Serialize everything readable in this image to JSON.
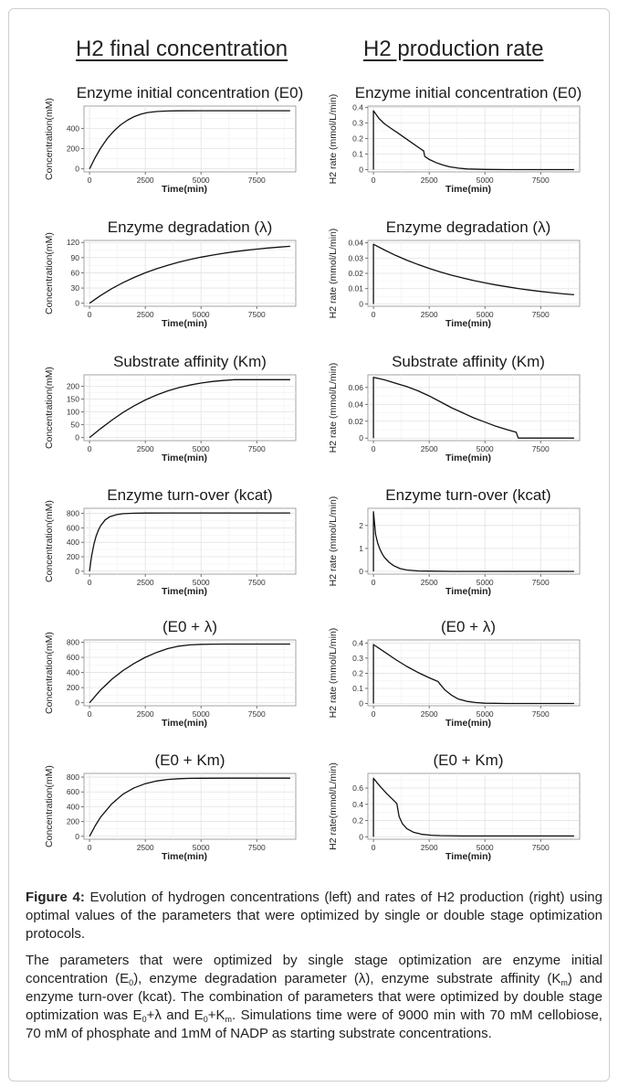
{
  "column_titles": {
    "left": "H2 final concentration",
    "right": "H2 production rate"
  },
  "caption": {
    "figure_label": "Figure 4:",
    "figure_text": " Evolution of hydrogen concentrations (left) and rates of H2 production (right) using optimal values of the parameters that were optimized by single or double stage optimization protocols.",
    "para2": {
      "t1": "The parameters that were optimized by single stage optimization are enzyme initial concentration (E",
      "s1": "0",
      "t2": "), enzyme degradation parameter (λ), enzyme substrate affinity (K",
      "s2": "m",
      "t3": ") and enzyme turn-over (kcat). The combination of parameters that were optimized by double stage optimization was E",
      "s3": "0",
      "t4": "+λ and E",
      "s4": "0",
      "t5": "+K",
      "s5": "m",
      "t6": ". Simulations time were of 9000 min with 70 mM cellobiose, 70 mM of phosphate and 1mM of NADP as starting substrate concentrations."
    }
  },
  "chart_data": [
    {
      "type": "line",
      "title": "Enzyme initial concentration (E0)",
      "xlabel": "Time(min)",
      "ylabel": "Concentration(mM)",
      "xlim": [
        -250,
        9250
      ],
      "ylim": [
        -30,
        620
      ],
      "xticks": [
        0,
        2500,
        5000,
        7500
      ],
      "yticks": [
        0,
        200,
        400
      ],
      "x": [
        0,
        250,
        500,
        800,
        1100,
        1400,
        1700,
        2000,
        2300,
        2600,
        3000,
        3500,
        4000,
        5000,
        6000,
        7000,
        8000,
        9000
      ],
      "y": [
        0,
        110,
        205,
        300,
        375,
        435,
        480,
        515,
        540,
        556,
        566,
        571,
        573,
        574,
        574,
        574,
        574,
        574
      ]
    },
    {
      "type": "line",
      "title": "Enzyme initial concentration (E0)",
      "xlabel": "Time(min)",
      "ylabel": "H2 rate (mmol/L/min)",
      "xlim": [
        -250,
        9250
      ],
      "ylim": [
        -0.015,
        0.41
      ],
      "xticks": [
        0,
        2500,
        5000,
        7500
      ],
      "yticks": [
        0.0,
        0.1,
        0.2,
        0.3,
        0.4
      ],
      "x": [
        0,
        0,
        250,
        500,
        800,
        1100,
        1400,
        1700,
        2000,
        2250,
        2300,
        2500,
        2800,
        3100,
        3400,
        3800,
        4200,
        5000,
        6000,
        7000,
        8000,
        9000
      ],
      "y": [
        0,
        0.38,
        0.33,
        0.295,
        0.265,
        0.235,
        0.205,
        0.175,
        0.145,
        0.12,
        0.085,
        0.065,
        0.045,
        0.03,
        0.018,
        0.009,
        0.004,
        0.001,
        0,
        0,
        0,
        0
      ]
    },
    {
      "type": "line",
      "title": "Enzyme degradation (λ)",
      "xlabel": "Time(min)",
      "ylabel": "Concentration(mM)",
      "xlim": [
        -250,
        9250
      ],
      "ylim": [
        -6,
        124
      ],
      "xticks": [
        0,
        2500,
        5000,
        7500
      ],
      "yticks": [
        0,
        30,
        60,
        90,
        120
      ],
      "x": [
        0,
        500,
        1000,
        1500,
        2000,
        2500,
        3000,
        3500,
        4000,
        4500,
        5000,
        5500,
        6000,
        6500,
        7000,
        7500,
        8000,
        8500,
        9000
      ],
      "y": [
        0,
        15.3,
        28.8,
        40.5,
        50.9,
        60,
        68,
        74.9,
        81,
        86.3,
        91,
        95,
        98.6,
        101.8,
        104.5,
        106.9,
        109,
        110.9,
        112.5
      ]
    },
    {
      "type": "line",
      "title": "Enzyme degradation (λ)",
      "xlabel": "Time(min)",
      "ylabel": "H2 rate (mmol/L/min)",
      "xlim": [
        -250,
        9250
      ],
      "ylim": [
        -0.0015,
        0.0415
      ],
      "xticks": [
        0,
        2500,
        5000,
        7500
      ],
      "yticks": [
        0.0,
        0.01,
        0.02,
        0.03,
        0.04
      ],
      "x": [
        0,
        0,
        500,
        1000,
        1500,
        2000,
        2500,
        3000,
        3500,
        4000,
        4500,
        5000,
        5500,
        6000,
        6500,
        7000,
        7500,
        8000,
        8500,
        9000
      ],
      "y": [
        0,
        0.039,
        0.0352,
        0.0317,
        0.0286,
        0.0258,
        0.0232,
        0.0209,
        0.0188,
        0.017,
        0.0153,
        0.0138,
        0.0124,
        0.0112,
        0.0101,
        0.0091,
        0.0082,
        0.0074,
        0.0066,
        0.006
      ]
    },
    {
      "type": "line",
      "title": "Substrate affinity (Km)",
      "xlabel": "Time(min)",
      "ylabel": "Concentration(mM)",
      "xlim": [
        -250,
        9250
      ],
      "ylim": [
        -12,
        245
      ],
      "xticks": [
        0,
        2500,
        5000,
        7500
      ],
      "yticks": [
        0,
        50,
        100,
        150,
        200
      ],
      "x": [
        0,
        500,
        1000,
        1500,
        2000,
        2500,
        3000,
        3500,
        4000,
        4500,
        5000,
        5500,
        6000,
        6500,
        7000,
        8000,
        9000
      ],
      "y": [
        0,
        35,
        68,
        98,
        124,
        147,
        166,
        182,
        195,
        205,
        213,
        219,
        223,
        226,
        226,
        226,
        226
      ]
    },
    {
      "type": "line",
      "title": "Substrate affinity (Km)",
      "xlabel": "Time(min)",
      "ylabel": "H2 rate (mmol/L/min)",
      "xlim": [
        -250,
        9250
      ],
      "ylim": [
        -0.003,
        0.075
      ],
      "xticks": [
        0,
        2500,
        5000,
        7500
      ],
      "yticks": [
        0.0,
        0.02,
        0.04,
        0.06
      ],
      "x": [
        0,
        0,
        500,
        1000,
        1500,
        2000,
        2500,
        3000,
        3500,
        4000,
        4500,
        5000,
        5500,
        6000,
        6400,
        6500,
        7000,
        8000,
        9000
      ],
      "y": [
        0,
        0.072,
        0.069,
        0.065,
        0.061,
        0.056,
        0.05,
        0.043,
        0.036,
        0.03,
        0.024,
        0.019,
        0.014,
        0.01,
        0.007,
        0,
        0,
        0,
        0
      ]
    },
    {
      "type": "line",
      "title": "Enzyme turn-over (kcat)",
      "xlabel": "Time(min)",
      "ylabel": "Concentration(mM)",
      "xlim": [
        -250,
        9250
      ],
      "ylim": [
        -40,
        870
      ],
      "xticks": [
        0,
        2500,
        5000,
        7500
      ],
      "yticks": [
        0,
        200,
        400,
        600,
        800
      ],
      "x": [
        0,
        50,
        100,
        200,
        300,
        400,
        500,
        700,
        900,
        1200,
        1500,
        2000,
        2500,
        3500,
        5000,
        7000,
        9000
      ],
      "y": [
        0,
        120,
        220,
        380,
        490,
        570,
        630,
        710,
        752,
        782,
        795,
        802,
        804,
        805,
        805,
        805,
        805
      ]
    },
    {
      "type": "line",
      "title": "Enzyme turn-over (kcat)",
      "xlabel": "Time(min)",
      "ylabel": "H2 rate (mmol/L/min)",
      "xlim": [
        -250,
        9250
      ],
      "ylim": [
        -0.12,
        2.75
      ],
      "xticks": [
        0,
        2500,
        5000,
        7500
      ],
      "yticks": [
        0,
        1,
        2
      ],
      "x": [
        0,
        0,
        50,
        100,
        200,
        300,
        400,
        500,
        700,
        900,
        1200,
        1500,
        2000,
        2500,
        3500,
        5000,
        7000,
        9000
      ],
      "y": [
        0,
        2.6,
        2.1,
        1.6,
        1.2,
        0.95,
        0.75,
        0.6,
        0.4,
        0.25,
        0.12,
        0.06,
        0.02,
        0.01,
        0,
        0,
        0,
        0
      ]
    },
    {
      "type": "line",
      "title": "(E0 + λ)",
      "xlabel": "Time(min)",
      "ylabel": "Concentration(mM)",
      "xlim": [
        -250,
        9250
      ],
      "ylim": [
        -40,
        830
      ],
      "xticks": [
        0,
        2500,
        5000,
        7500
      ],
      "yticks": [
        0,
        200,
        400,
        600,
        800
      ],
      "x": [
        0,
        500,
        1000,
        1500,
        2000,
        2500,
        3000,
        3500,
        4000,
        4500,
        5000,
        5500,
        6000,
        7000,
        8000,
        9000
      ],
      "y": [
        0,
        170,
        310,
        425,
        520,
        600,
        665,
        715,
        748,
        765,
        772,
        775,
        776,
        776,
        776,
        776
      ]
    },
    {
      "type": "line",
      "title": "(E0 + λ)",
      "xlabel": "Time(min)",
      "ylabel": "H2 rate (mmol/L/min)",
      "xlim": [
        -250,
        9250
      ],
      "ylim": [
        -0.015,
        0.42
      ],
      "xticks": [
        0,
        2500,
        5000,
        7500
      ],
      "yticks": [
        0.0,
        0.1,
        0.2,
        0.3,
        0.4
      ],
      "x": [
        0,
        0,
        500,
        1000,
        1500,
        2000,
        2500,
        2900,
        3000,
        3200,
        3500,
        3800,
        4200,
        4600,
        5000,
        6000,
        7000,
        8000,
        9000
      ],
      "y": [
        0,
        0.39,
        0.34,
        0.29,
        0.245,
        0.205,
        0.17,
        0.145,
        0.125,
        0.09,
        0.055,
        0.03,
        0.014,
        0.006,
        0.002,
        0,
        0,
        0,
        0
      ]
    },
    {
      "type": "line",
      "title": "(E0 + Km)",
      "xlabel": "Time(min)",
      "ylabel": "Concentration(mM)",
      "xlim": [
        -250,
        9250
      ],
      "ylim": [
        -40,
        850
      ],
      "xticks": [
        0,
        2500,
        5000,
        7500
      ],
      "yticks": [
        0,
        200,
        400,
        600,
        800
      ],
      "x": [
        0,
        250,
        500,
        1000,
        1500,
        2000,
        2500,
        3000,
        3500,
        4000,
        4500,
        5000,
        6000,
        7000,
        8000,
        9000
      ],
      "y": [
        0,
        140,
        260,
        440,
        570,
        655,
        712,
        748,
        768,
        778,
        783,
        785,
        786,
        786,
        786,
        786
      ]
    },
    {
      "type": "line",
      "title": "(E0 + Km)",
      "xlabel": "Time(min)",
      "ylabel": "H2 rate(mmol/L/min)",
      "xlim": [
        -250,
        9250
      ],
      "ylim": [
        -0.03,
        0.78
      ],
      "xticks": [
        0,
        2500,
        5000,
        7500
      ],
      "yticks": [
        0.0,
        0.2,
        0.4,
        0.6
      ],
      "x": [
        0,
        0,
        300,
        600,
        900,
        1050,
        1150,
        1300,
        1500,
        1800,
        2200,
        2600,
        3000,
        4000,
        5000,
        7000,
        9000
      ],
      "y": [
        0,
        0.72,
        0.62,
        0.53,
        0.45,
        0.41,
        0.25,
        0.16,
        0.1,
        0.055,
        0.03,
        0.02,
        0.015,
        0.01,
        0.01,
        0.01,
        0.01
      ]
    }
  ]
}
